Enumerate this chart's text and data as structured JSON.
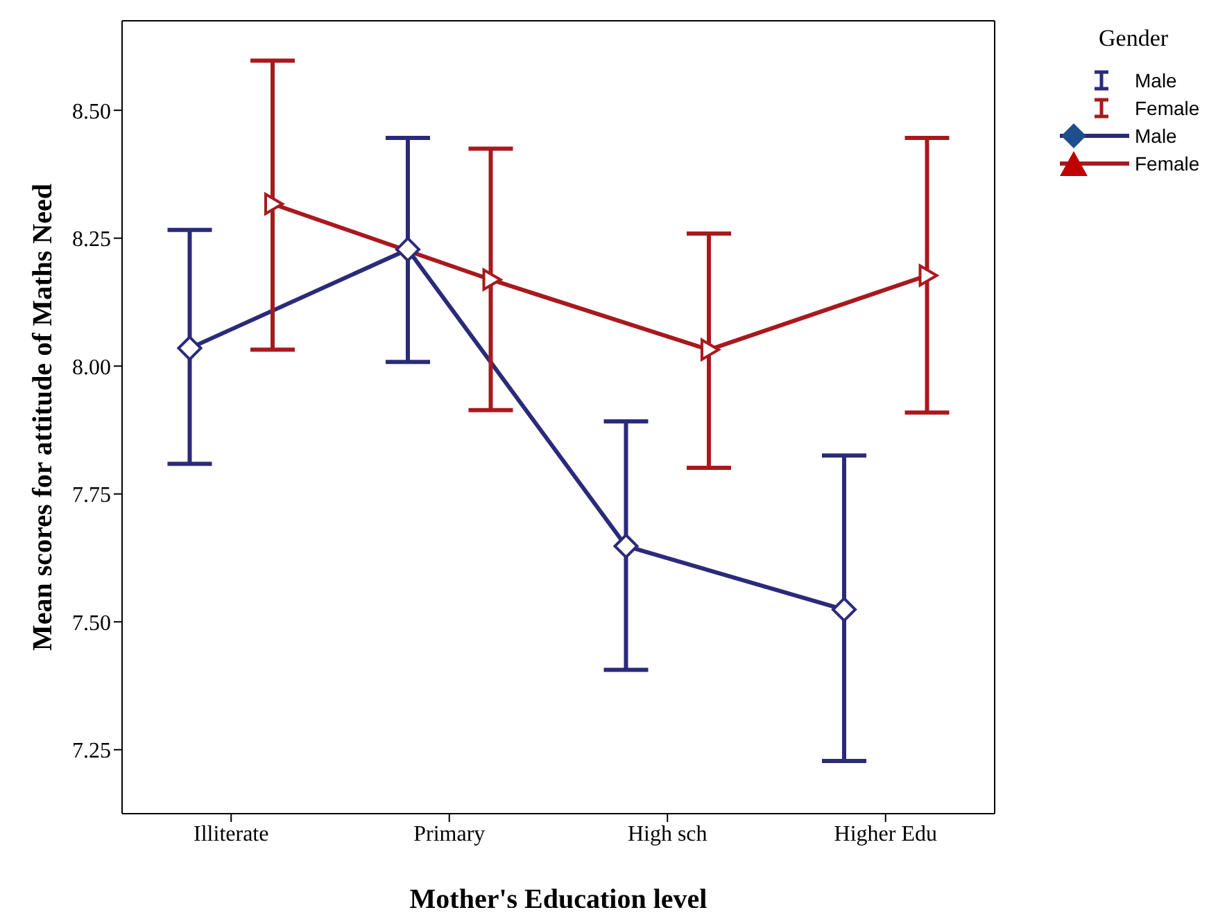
{
  "chart_data": {
    "type": "line",
    "xlabel": "Mother's Education level",
    "ylabel": "Mean scores for attitude of Maths Need",
    "legend_title": "Gender",
    "legend": "top right",
    "categories": [
      "Illiterate",
      "Primary",
      "High sch",
      "Higher Edu"
    ],
    "ylim": [
      7.125,
      8.675
    ],
    "yticks": [
      {
        "value": 7.25,
        "label": "7.25"
      },
      {
        "value": 7.5,
        "label": "7.50"
      },
      {
        "value": 7.75,
        "label": "7.75"
      },
      {
        "value": 8,
        "label": "8.00"
      },
      {
        "value": 8.25,
        "label": "8.25"
      },
      {
        "value": 8.5,
        "label": "8.50"
      }
    ],
    "series": [
      {
        "name": "Male",
        "color": "#2b2a7a",
        "marker": "diamond",
        "values": [
          8.035,
          8.228,
          7.648,
          7.524
        ],
        "errors": [
          [
            7.809,
            8.266
          ],
          [
            8.008,
            8.446
          ],
          [
            7.406,
            7.892
          ],
          [
            7.228,
            7.825
          ]
        ]
      },
      {
        "name": "Female",
        "color": "#a8191e",
        "marker": "triangle",
        "values": [
          8.317,
          8.169,
          8.032,
          8.177
        ],
        "errors": [
          [
            8.032,
            8.597
          ],
          [
            7.914,
            8.425
          ],
          [
            7.801,
            8.259
          ],
          [
            7.909,
            8.446
          ]
        ]
      }
    ]
  }
}
